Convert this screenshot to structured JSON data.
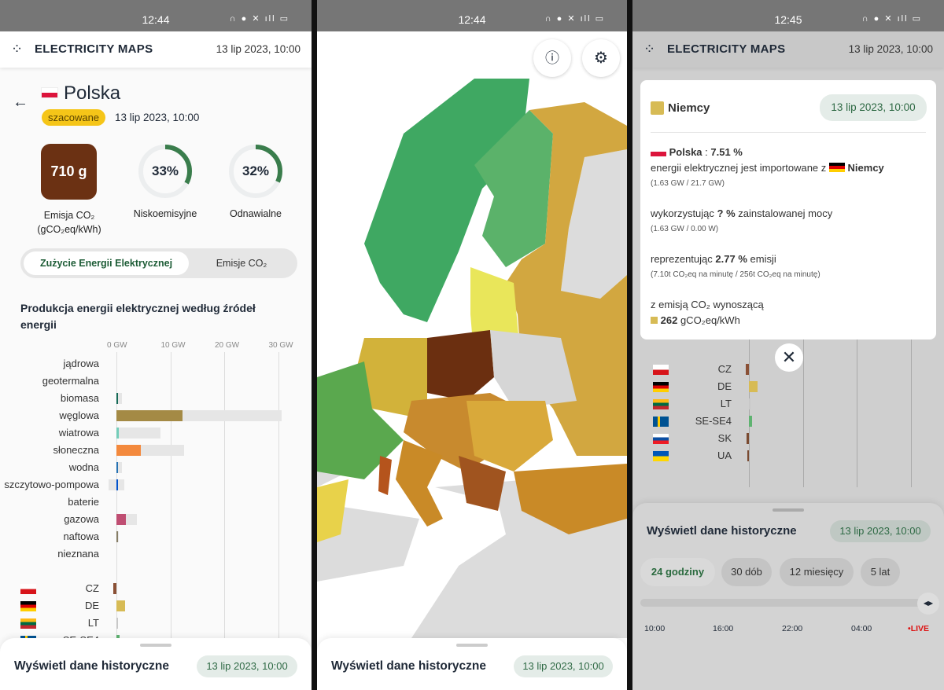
{
  "status": {
    "time_1": "12:44",
    "time_2": "12:44",
    "time_3": "12:45",
    "battery": "79"
  },
  "header": {
    "brand": "ELECTRICITY MAPS",
    "date": "13 lip 2023, 10:00",
    "logo_icon": "lightning-dots-icon"
  },
  "zone": {
    "name": "Polska",
    "badge": "szacowane",
    "date": "13 lip 2023, 10:00",
    "co2_value": "710 g",
    "co2_label_1": "Emisja CO₂",
    "co2_label_2": "(gCO₂eq/kWh)",
    "co2_color": "#6b3113",
    "low_carbon": "33%",
    "low_carbon_frac": 0.33,
    "low_carbon_label": "Niskoemisyjne",
    "renewable": "32%",
    "renewable_frac": 0.32,
    "renewable_label": "Odnawialne"
  },
  "toggle": {
    "consumption": "Zużycie Energii Elektrycznej",
    "emissions": "Emisje CO₂"
  },
  "chart_data": {
    "type": "bar",
    "title": "Produkcja energii elektrycznej według źródeł energii",
    "xlim": [
      0,
      30
    ],
    "ticks": [
      "0 GW",
      "10 GW",
      "20 GW",
      "30 GW"
    ],
    "grid": true,
    "categories": [
      "jądrowa",
      "geotermalna",
      "biomasa",
      "węglowa",
      "wiatrowa",
      "słoneczna",
      "wodna",
      "szczytowo-pompowa",
      "baterie",
      "gazowa",
      "naftowa",
      "nieznana"
    ],
    "series": [
      {
        "name": "production",
        "values": [
          0,
          0,
          0.2,
          12.2,
          0.5,
          4.5,
          0.1,
          0.1,
          0,
          1.7,
          0.3,
          0
        ],
        "colors": [
          "#9d71f7",
          "#f5b300",
          "#166a57",
          "#a48a45",
          "#74cdb9",
          "#f3893d",
          "#2772b2",
          "#0052cc",
          "#b6b6b6",
          "#bf4e72",
          "#867d66",
          "#acacac"
        ]
      },
      {
        "name": "capacity",
        "values": [
          0,
          0,
          1,
          30.7,
          8.2,
          12.5,
          1,
          1.5,
          0,
          3.8,
          0.4,
          0
        ],
        "min": [
          0,
          0,
          0,
          0,
          0,
          0,
          0,
          -1.5,
          0,
          0,
          0,
          0
        ]
      }
    ],
    "exchanges": {
      "categories": [
        "CZ",
        "DE",
        "LT",
        "SE-SE4",
        "SK",
        "UA"
      ],
      "values": [
        -0.6,
        1.6,
        0.3,
        0.6,
        -0.4,
        -0.1
      ],
      "colors": [
        "#8a5035",
        "#d7bb55",
        "#c8c8c8",
        "#5fb371",
        "#7a4a30",
        "#7a4a30"
      ]
    }
  },
  "history": {
    "title": "Wyświetl dane historyczne",
    "date": "13 lip 2023, 10:00",
    "tabs": [
      "24 godziny",
      "30 dób",
      "12 miesięcy",
      "5 lat"
    ],
    "times": [
      "10:00",
      "16:00",
      "22:00",
      "04:00"
    ],
    "live": "LIVE"
  },
  "tooltip": {
    "zone": "Niemcy",
    "date": "13 lip 2023, 10:00",
    "from": "Polska",
    "pct": "7.51 %",
    "line1": "energii elektrycznej jest importowane z",
    "source": "Niemcy",
    "sub1": "(1.63 GW / 21.7 GW)",
    "using_pre": "wykorzystując",
    "using_val": "? %",
    "using_post": "zainstalowanej mocy",
    "sub2": "(1.63 GW / 0.00 W)",
    "rep_pre": "reprezentując",
    "rep_val": "2.77 %",
    "rep_post": "emisji",
    "sub3": "(7.10t CO₂eq na minutę / 256t CO₂eq na minutę)",
    "em_label": "z emisją CO₂ wynoszącą",
    "em_val": "262",
    "em_unit": "gCO₂eq/kWh",
    "color": "#d7bb55"
  },
  "map": {
    "info_icon": "info-icon",
    "settings_icon": "gear-icon"
  }
}
